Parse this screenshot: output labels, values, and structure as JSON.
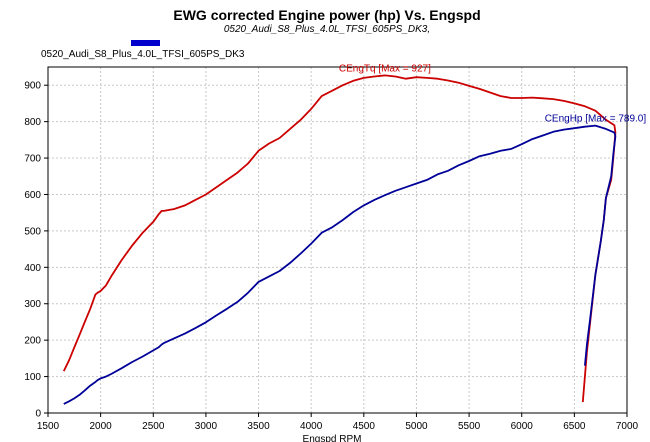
{
  "colors": {
    "background": "#ffffff",
    "plot_frame": "#000000",
    "legend_swatch": "#0000cc"
  },
  "chart_data": {
    "type": "line",
    "title": "EWG corrected Engine power (hp) Vs. Engspd",
    "subtitle": "0520_Audi_S8_Plus_4.0L_TFSI_605PS_DK3,",
    "legend": [
      "0520_Audi_S8_Plus_4.0L_TFSI_605PS_DK3"
    ],
    "xlabel": "Engspd RPM",
    "ylabel": "",
    "xlim": [
      1500,
      7000
    ],
    "ylim": [
      0,
      950
    ],
    "xticks": [
      1500,
      2000,
      2500,
      3000,
      3500,
      4000,
      4500,
      5000,
      5500,
      6000,
      6500,
      7000
    ],
    "yticks": [
      0,
      100,
      200,
      300,
      400,
      500,
      600,
      700,
      800,
      900
    ],
    "xtick_labels": [
      "1500",
      "2000",
      "2500",
      "3000",
      "3500",
      "4000",
      "4500",
      "5000",
      "5500",
      "6000",
      "6500",
      "7000"
    ],
    "ytick_labels": [
      "0",
      "100",
      "200",
      "300",
      "400",
      "500",
      "600",
      "700",
      "800",
      "900"
    ],
    "grid": true,
    "series": [
      {
        "name": "CEngTq",
        "color": "#cc0000",
        "annotation": "CEngTq [Max = 927]",
        "x": [
          1650,
          1700,
          1750,
          1800,
          1850,
          1900,
          1950,
          1970,
          2000,
          2050,
          2100,
          2200,
          2300,
          2400,
          2500,
          2550,
          2580,
          2600,
          2700,
          2800,
          2900,
          3000,
          3100,
          3200,
          3300,
          3400,
          3500,
          3600,
          3700,
          3800,
          3900,
          4000,
          4100,
          4200,
          4300,
          4400,
          4500,
          4600,
          4700,
          4800,
          4900,
          5000,
          5100,
          5200,
          5300,
          5400,
          5500,
          5600,
          5700,
          5800,
          5900,
          6000,
          6100,
          6200,
          6300,
          6400,
          6500,
          6600,
          6700,
          6800,
          6880,
          6890,
          6870,
          6850,
          6800,
          6780,
          6750,
          6700,
          6650,
          6620,
          6600,
          6580
        ],
        "y": [
          115,
          145,
          180,
          215,
          250,
          285,
          325,
          330,
          335,
          350,
          375,
          420,
          460,
          495,
          525,
          545,
          555,
          555,
          560,
          570,
          585,
          600,
          620,
          640,
          660,
          685,
          720,
          740,
          755,
          780,
          805,
          835,
          870,
          885,
          900,
          912,
          920,
          924,
          927,
          924,
          918,
          922,
          920,
          918,
          913,
          907,
          898,
          890,
          880,
          870,
          865,
          865,
          866,
          864,
          862,
          857,
          850,
          842,
          830,
          805,
          790,
          770,
          700,
          640,
          590,
          530,
          470,
          380,
          250,
          170,
          100,
          30
        ]
      },
      {
        "name": "CEngHp",
        "color": "#000099",
        "annotation": "CEngHp [Max = 789.0]",
        "x": [
          1650,
          1700,
          1750,
          1800,
          1850,
          1900,
          1950,
          1970,
          2000,
          2050,
          2100,
          2200,
          2300,
          2400,
          2500,
          2550,
          2580,
          2600,
          2700,
          2800,
          2900,
          3000,
          3100,
          3200,
          3300,
          3400,
          3500,
          3600,
          3700,
          3800,
          3900,
          4000,
          4100,
          4200,
          4300,
          4400,
          4500,
          4600,
          4700,
          4800,
          4900,
          5000,
          5100,
          5200,
          5300,
          5400,
          5500,
          5600,
          5700,
          5800,
          5900,
          6000,
          6100,
          6200,
          6300,
          6400,
          6500,
          6600,
          6700,
          6800,
          6880,
          6890,
          6870,
          6850,
          6800,
          6780,
          6750,
          6700,
          6650,
          6620,
          6600
        ],
        "y": [
          25,
          32,
          40,
          50,
          62,
          75,
          85,
          90,
          95,
          100,
          107,
          123,
          140,
          155,
          172,
          180,
          188,
          192,
          205,
          218,
          233,
          249,
          268,
          286,
          305,
          330,
          360,
          375,
          390,
          412,
          438,
          465,
          495,
          510,
          530,
          552,
          570,
          585,
          598,
          610,
          620,
          630,
          640,
          655,
          665,
          680,
          692,
          705,
          712,
          720,
          725,
          738,
          752,
          762,
          772,
          778,
          782,
          786,
          789,
          780,
          770,
          760,
          710,
          650,
          590,
          530,
          470,
          380,
          260,
          190,
          130
        ]
      }
    ]
  }
}
